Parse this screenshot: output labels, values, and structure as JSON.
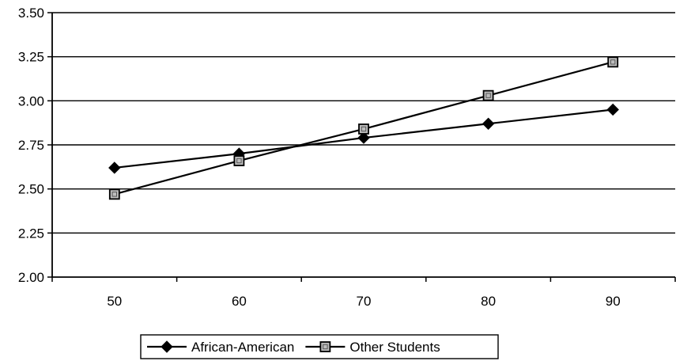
{
  "chart_data": {
    "type": "line",
    "x": [
      50,
      60,
      70,
      80,
      90
    ],
    "series": [
      {
        "name": "African-American",
        "marker": "diamond",
        "values": [
          2.62,
          2.7,
          2.79,
          2.87,
          2.95
        ]
      },
      {
        "name": "Other Students",
        "marker": "square",
        "values": [
          2.47,
          2.66,
          2.84,
          3.03,
          3.22
        ]
      }
    ],
    "x_ticks": [
      "50",
      "60",
      "70",
      "80",
      "90"
    ],
    "y_ticks": [
      "2.00",
      "2.25",
      "2.50",
      "2.75",
      "3.00",
      "3.25",
      "3.50"
    ],
    "xlim": [
      45,
      95
    ],
    "ylim": [
      2.0,
      3.5
    ],
    "grid": "horizontal",
    "legend": "bottom-center",
    "colors": {
      "line": "#000000",
      "grid": "#000000",
      "background": "#ffffff"
    }
  }
}
